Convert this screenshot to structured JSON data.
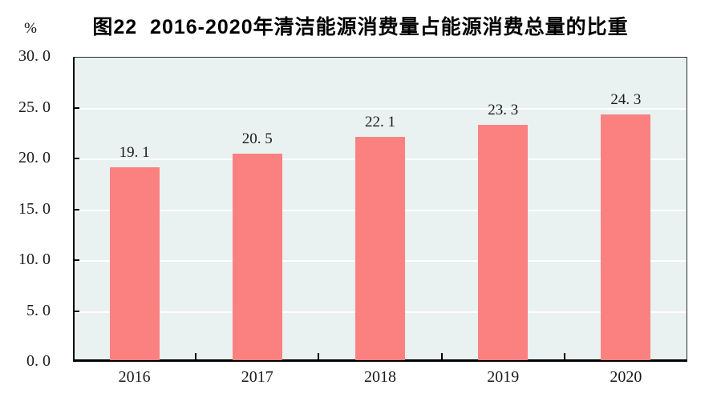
{
  "page": {
    "background": "#ffffff"
  },
  "header": {
    "title": "图22  2016-2020年清洁能源消费量占能源消费总量的比重",
    "unit_label": "%"
  },
  "chart_data": {
    "type": "bar",
    "title": "图22  2016-2020年清洁能源消费量占能源消费总量的比重",
    "categories": [
      "2016",
      "2017",
      "2018",
      "2019",
      "2020"
    ],
    "values": [
      19.1,
      20.5,
      22.1,
      23.3,
      24.3
    ],
    "value_labels": [
      "19. 1",
      "20. 5",
      "22. 1",
      "23. 3",
      "24. 3"
    ],
    "xlabel": "",
    "ylabel": "%",
    "ylim": [
      0,
      30
    ],
    "ytick_interval": 5,
    "ytick_labels": [
      "0. 0",
      "5. 0",
      "10. 0",
      "15. 0",
      "20. 0",
      "25. 0",
      "30. 0"
    ],
    "grid": true,
    "legend_position": "none",
    "colors": {
      "bar": "#FA8180",
      "plot_background": "#E9F1F1",
      "gridline": "#FFFFFF",
      "axis": "#000000",
      "text": "#1a1a1a"
    }
  }
}
